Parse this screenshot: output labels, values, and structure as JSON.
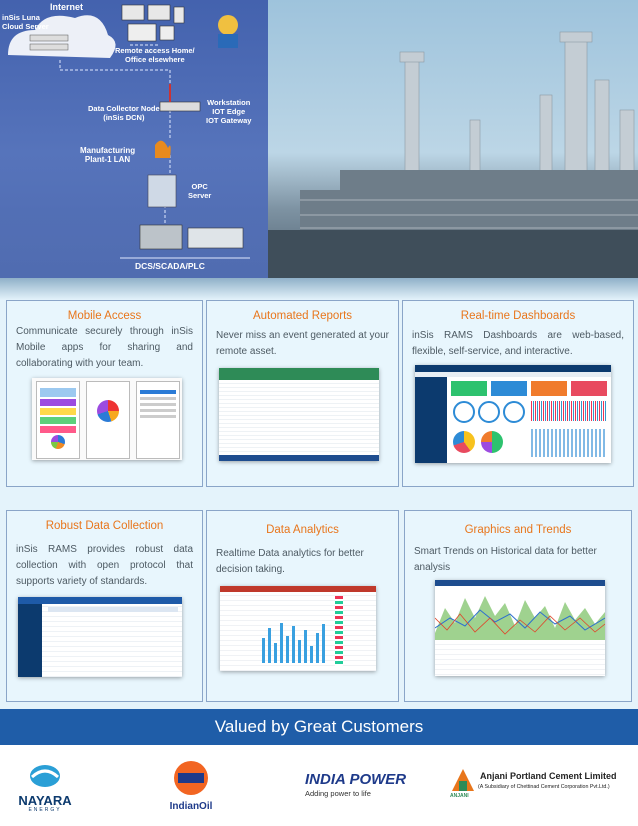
{
  "hero": {
    "internet": "Internet",
    "cloud_server": "inSis Luna\nCloud Server",
    "remote_access": "Remote access Home/\nOffice elsewhere",
    "data_collector": "Data Collector Node\n(inSis DCN)",
    "workstation": "Workstation\nIOT Edge\nIOT Gateway",
    "manufacturing": "Manufacturing\nPlant-1 LAN",
    "opc": "OPC\nServer",
    "dcs": "DCS/SCADA/PLC"
  },
  "features": [
    {
      "title": "Mobile Access",
      "text": "Communicate securely through inSis Mobile apps for sharing and collaborating with your team."
    },
    {
      "title": "Automated Reports",
      "text": "Never miss an event generated at your remote asset."
    },
    {
      "title": "Real-time Dashboards",
      "text": "inSis RAMS Dashboards are web-based, flexible, self-service, and interactive."
    },
    {
      "title": "Robust Data Collection",
      "text": "inSis RAMS provides robust data collection with open protocol that supports variety of standards."
    },
    {
      "title": "Data Analytics",
      "text": "Realtime Data analytics for better decision taking."
    },
    {
      "title": "Graphics and Trends",
      "text": "Smart Trends on Historical data for better analysis"
    }
  ],
  "banner": {
    "title": "Valued by Great Customers"
  },
  "customers": {
    "nayara": {
      "name": "NAYARA",
      "sub": "ENERGY"
    },
    "indianoil": {
      "name": "IndianOil"
    },
    "indiapower": {
      "name": "INDIA POWER",
      "tagline": "Adding power to life"
    },
    "anjani": {
      "name": "Anjani Portland Cement Limited",
      "sub": "(A Subsidiary of Chettinad Cement Corporation Pvt.Ltd.)",
      "mark": "ANJANI"
    }
  },
  "colors": {
    "accent_orange": "#e8761c",
    "banner_blue": "#1f5da8",
    "body_text": "#4d5a63"
  }
}
